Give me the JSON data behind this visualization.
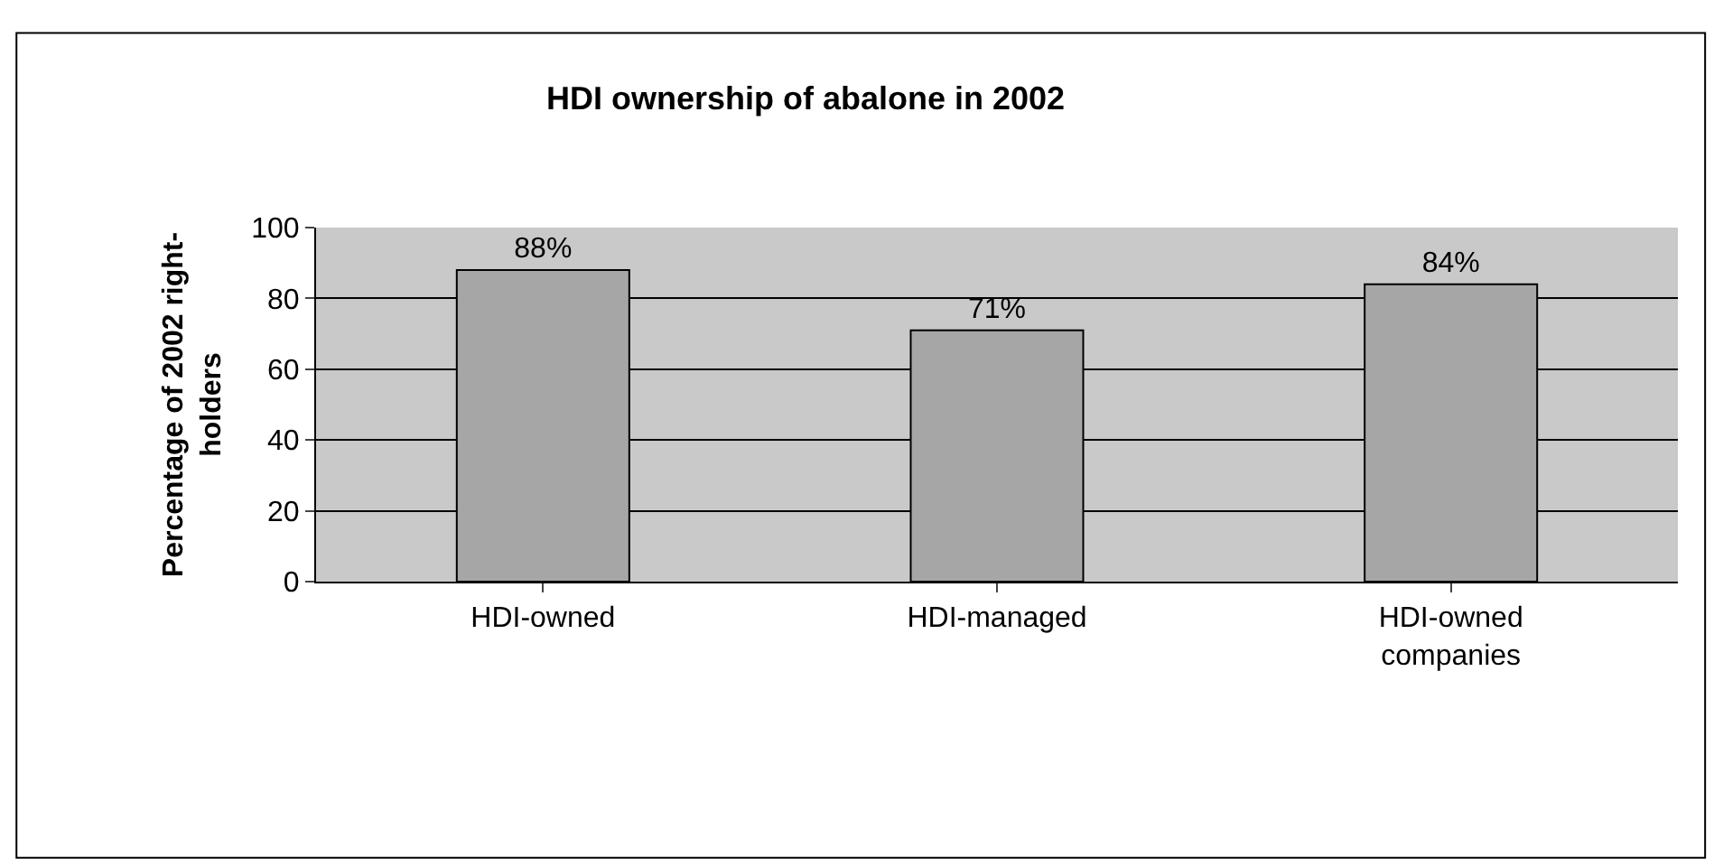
{
  "chart_data": {
    "type": "bar",
    "title": "HDI ownership of abalone in 2002",
    "ylabel": "Percentage of 2002 right-holders",
    "categories": [
      "HDI-owned",
      "HDI-managed",
      "HDI-owned companies"
    ],
    "values": [
      88,
      71,
      84
    ],
    "value_labels": [
      "88%",
      "71%",
      "84%"
    ],
    "color": "#a6a6a6",
    "ylim": [
      0,
      100
    ],
    "yticks": [
      0,
      20,
      40,
      60,
      80,
      100
    ],
    "grid": "y"
  }
}
